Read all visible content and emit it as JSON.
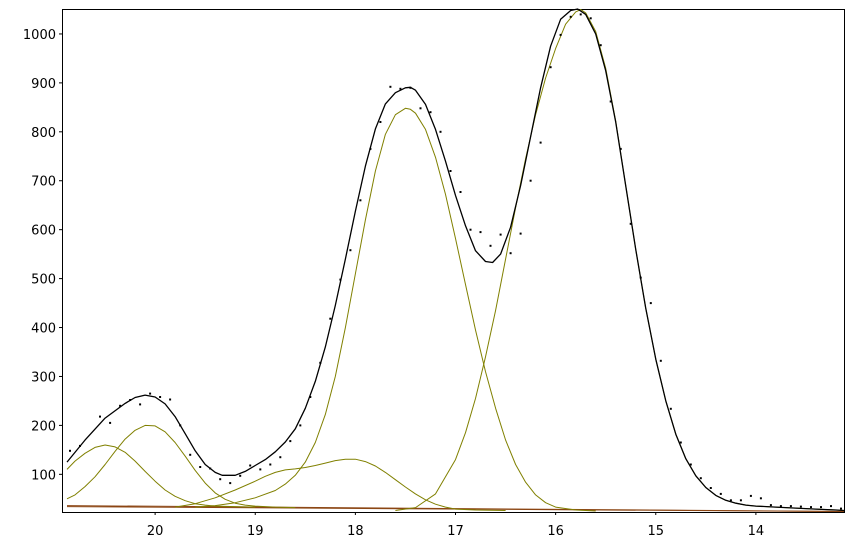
{
  "chart_data": {
    "type": "line",
    "title": "",
    "xlabel": "",
    "ylabel": "",
    "x_reversed": true,
    "xlim": [
      20.93,
      13.12
    ],
    "ylim": [
      23,
      1051
    ],
    "grid": false,
    "legend": "none",
    "x_ticks": [
      20,
      19,
      18,
      17,
      16,
      15,
      14
    ],
    "y_ticks": [
      100,
      200,
      300,
      400,
      500,
      600,
      700,
      800,
      900,
      1000
    ],
    "colors": {
      "fit": "#000000",
      "component": "#808000",
      "baseline": "#8B4513",
      "points": "#000000"
    },
    "series": [
      {
        "role": "observed",
        "points": [
          [
            20.85,
            148
          ],
          [
            20.75,
            158
          ],
          [
            20.55,
            218
          ],
          [
            20.45,
            205
          ],
          [
            20.35,
            240
          ],
          [
            20.25,
            252
          ],
          [
            20.15,
            243
          ],
          [
            20.05,
            265
          ],
          [
            19.95,
            258
          ],
          [
            19.85,
            253
          ],
          [
            19.75,
            200
          ],
          [
            19.65,
            140
          ],
          [
            19.55,
            115
          ],
          [
            19.45,
            112
          ],
          [
            19.35,
            90
          ],
          [
            19.25,
            82
          ],
          [
            19.15,
            97
          ],
          [
            19.05,
            118
          ],
          [
            18.95,
            110
          ],
          [
            18.85,
            120
          ],
          [
            18.75,
            135
          ],
          [
            18.65,
            168
          ],
          [
            18.55,
            200
          ],
          [
            18.45,
            258
          ],
          [
            18.35,
            328
          ],
          [
            18.25,
            418
          ],
          [
            18.15,
            498
          ],
          [
            18.05,
            558
          ],
          [
            17.95,
            660
          ],
          [
            17.85,
            765
          ],
          [
            17.75,
            820
          ],
          [
            17.65,
            892
          ],
          [
            17.55,
            888
          ],
          [
            17.45,
            890
          ],
          [
            17.35,
            848
          ],
          [
            17.25,
            840
          ],
          [
            17.15,
            800
          ],
          [
            17.05,
            720
          ],
          [
            16.95,
            677
          ],
          [
            16.85,
            600
          ],
          [
            16.75,
            595
          ],
          [
            16.65,
            567
          ],
          [
            16.55,
            590
          ],
          [
            16.45,
            552
          ],
          [
            16.35,
            592
          ],
          [
            16.25,
            700
          ],
          [
            16.15,
            778
          ],
          [
            16.05,
            932
          ],
          [
            15.95,
            998
          ],
          [
            15.85,
            1035
          ],
          [
            15.75,
            1040
          ],
          [
            15.65,
            1032
          ],
          [
            15.55,
            977
          ],
          [
            15.45,
            862
          ],
          [
            15.35,
            765
          ],
          [
            15.25,
            612
          ],
          [
            15.15,
            502
          ],
          [
            15.05,
            450
          ],
          [
            14.95,
            332
          ],
          [
            14.85,
            234
          ],
          [
            14.75,
            165
          ],
          [
            14.65,
            120
          ],
          [
            14.55,
            92
          ],
          [
            14.45,
            72
          ],
          [
            14.35,
            60
          ],
          [
            14.25,
            47
          ],
          [
            14.15,
            47
          ],
          [
            14.05,
            56
          ],
          [
            13.95,
            51
          ],
          [
            13.85,
            37
          ],
          [
            13.75,
            35
          ],
          [
            13.65,
            35
          ],
          [
            13.55,
            34
          ],
          [
            13.45,
            33
          ],
          [
            13.35,
            33
          ],
          [
            13.25,
            35
          ],
          [
            13.15,
            30
          ]
        ]
      },
      {
        "role": "fit",
        "points": [
          [
            20.88,
            125
          ],
          [
            20.7,
            170
          ],
          [
            20.5,
            215
          ],
          [
            20.3,
            245
          ],
          [
            20.2,
            257
          ],
          [
            20.1,
            262
          ],
          [
            20.0,
            258
          ],
          [
            19.9,
            244
          ],
          [
            19.8,
            218
          ],
          [
            19.7,
            183
          ],
          [
            19.6,
            148
          ],
          [
            19.5,
            120
          ],
          [
            19.4,
            104
          ],
          [
            19.33,
            98
          ],
          [
            19.2,
            98
          ],
          [
            19.1,
            106
          ],
          [
            19.0,
            118
          ],
          [
            18.9,
            130
          ],
          [
            18.8,
            146
          ],
          [
            18.7,
            166
          ],
          [
            18.6,
            193
          ],
          [
            18.5,
            235
          ],
          [
            18.4,
            290
          ],
          [
            18.3,
            360
          ],
          [
            18.2,
            445
          ],
          [
            18.1,
            540
          ],
          [
            18.0,
            638
          ],
          [
            17.9,
            730
          ],
          [
            17.8,
            806
          ],
          [
            17.7,
            857
          ],
          [
            17.6,
            880
          ],
          [
            17.5,
            890
          ],
          [
            17.45,
            891
          ],
          [
            17.4,
            885
          ],
          [
            17.3,
            856
          ],
          [
            17.2,
            805
          ],
          [
            17.1,
            740
          ],
          [
            17.0,
            670
          ],
          [
            16.9,
            608
          ],
          [
            16.8,
            557
          ],
          [
            16.7,
            535
          ],
          [
            16.63,
            533
          ],
          [
            16.55,
            550
          ],
          [
            16.45,
            605
          ],
          [
            16.35,
            690
          ],
          [
            16.25,
            790
          ],
          [
            16.15,
            890
          ],
          [
            16.05,
            975
          ],
          [
            15.95,
            1030
          ],
          [
            15.85,
            1048
          ],
          [
            15.78,
            1051
          ],
          [
            15.7,
            1040
          ],
          [
            15.6,
            1000
          ],
          [
            15.5,
            925
          ],
          [
            15.4,
            820
          ],
          [
            15.3,
            690
          ],
          [
            15.2,
            560
          ],
          [
            15.1,
            440
          ],
          [
            15.0,
            335
          ],
          [
            14.9,
            250
          ],
          [
            14.8,
            182
          ],
          [
            14.7,
            132
          ],
          [
            14.6,
            97
          ],
          [
            14.5,
            73
          ],
          [
            14.4,
            57
          ],
          [
            14.3,
            47
          ],
          [
            14.2,
            41
          ],
          [
            14.1,
            37
          ],
          [
            14.0,
            35
          ],
          [
            13.8,
            33
          ],
          [
            13.6,
            31
          ],
          [
            13.4,
            29
          ],
          [
            13.2,
            27
          ],
          [
            13.12,
            26
          ]
        ]
      },
      {
        "role": "component",
        "points": [
          [
            20.88,
            110
          ],
          [
            20.8,
            127
          ],
          [
            20.7,
            143
          ],
          [
            20.6,
            155
          ],
          [
            20.5,
            160
          ],
          [
            20.4,
            156
          ],
          [
            20.3,
            145
          ],
          [
            20.2,
            127
          ],
          [
            20.1,
            106
          ],
          [
            20.0,
            86
          ],
          [
            19.9,
            68
          ],
          [
            19.8,
            55
          ],
          [
            19.7,
            46
          ],
          [
            19.6,
            40
          ],
          [
            19.5,
            37
          ],
          [
            19.4,
            35
          ],
          [
            19.2,
            34
          ],
          [
            19.0,
            33
          ]
        ]
      },
      {
        "role": "component",
        "points": [
          [
            20.88,
            50
          ],
          [
            20.8,
            58
          ],
          [
            20.7,
            75
          ],
          [
            20.6,
            95
          ],
          [
            20.5,
            120
          ],
          [
            20.4,
            147
          ],
          [
            20.3,
            172
          ],
          [
            20.2,
            190
          ],
          [
            20.1,
            200
          ],
          [
            20.0,
            199
          ],
          [
            19.9,
            187
          ],
          [
            19.8,
            165
          ],
          [
            19.7,
            137
          ],
          [
            19.6,
            108
          ],
          [
            19.5,
            82
          ],
          [
            19.4,
            62
          ],
          [
            19.3,
            49
          ],
          [
            19.2,
            41
          ],
          [
            19.1,
            37
          ],
          [
            19.0,
            35
          ],
          [
            18.8,
            33
          ],
          [
            18.6,
            32
          ]
        ]
      },
      {
        "role": "component",
        "points": [
          [
            19.8,
            33
          ],
          [
            19.6,
            40
          ],
          [
            19.4,
            52
          ],
          [
            19.2,
            68
          ],
          [
            19.0,
            86
          ],
          [
            18.9,
            96
          ],
          [
            18.8,
            104
          ],
          [
            18.7,
            109
          ],
          [
            18.6,
            111
          ],
          [
            18.5,
            114
          ],
          [
            18.4,
            118
          ],
          [
            18.3,
            123
          ],
          [
            18.2,
            128
          ],
          [
            18.1,
            131
          ],
          [
            18.0,
            131
          ],
          [
            17.9,
            126
          ],
          [
            17.8,
            117
          ],
          [
            17.7,
            104
          ],
          [
            17.6,
            89
          ],
          [
            17.5,
            74
          ],
          [
            17.4,
            60
          ],
          [
            17.3,
            48
          ],
          [
            17.2,
            39
          ],
          [
            17.1,
            33
          ],
          [
            17.0,
            29
          ],
          [
            16.8,
            27
          ],
          [
            16.5,
            26
          ]
        ]
      },
      {
        "role": "component",
        "points": [
          [
            19.6,
            33
          ],
          [
            19.4,
            36
          ],
          [
            19.2,
            42
          ],
          [
            19.0,
            52
          ],
          [
            18.8,
            67
          ],
          [
            18.7,
            80
          ],
          [
            18.6,
            98
          ],
          [
            18.5,
            125
          ],
          [
            18.4,
            165
          ],
          [
            18.3,
            222
          ],
          [
            18.2,
            300
          ],
          [
            18.1,
            400
          ],
          [
            18.0,
            510
          ],
          [
            17.9,
            620
          ],
          [
            17.8,
            720
          ],
          [
            17.7,
            795
          ],
          [
            17.6,
            835
          ],
          [
            17.5,
            848
          ],
          [
            17.45,
            846
          ],
          [
            17.4,
            838
          ],
          [
            17.3,
            805
          ],
          [
            17.2,
            748
          ],
          [
            17.1,
            672
          ],
          [
            17.0,
            582
          ],
          [
            16.9,
            488
          ],
          [
            16.8,
            395
          ],
          [
            16.7,
            310
          ],
          [
            16.6,
            235
          ],
          [
            16.5,
            170
          ],
          [
            16.4,
            120
          ],
          [
            16.3,
            84
          ],
          [
            16.2,
            58
          ],
          [
            16.1,
            42
          ],
          [
            16.0,
            33
          ],
          [
            15.8,
            27
          ],
          [
            15.6,
            25
          ]
        ]
      },
      {
        "role": "component",
        "points": [
          [
            17.6,
            26
          ],
          [
            17.4,
            32
          ],
          [
            17.2,
            60
          ],
          [
            17.0,
            130
          ],
          [
            16.9,
            185
          ],
          [
            16.8,
            255
          ],
          [
            16.7,
            340
          ],
          [
            16.6,
            435
          ],
          [
            16.5,
            540
          ],
          [
            16.4,
            645
          ],
          [
            16.3,
            745
          ],
          [
            16.2,
            835
          ],
          [
            16.1,
            910
          ],
          [
            16.0,
            970
          ],
          [
            15.9,
            1020
          ],
          [
            15.8,
            1045
          ],
          [
            15.75,
            1050
          ],
          [
            15.7,
            1043
          ],
          [
            15.6,
            1005
          ],
          [
            15.5,
            930
          ],
          [
            15.4,
            822
          ],
          [
            15.3,
            690
          ],
          [
            15.2,
            560
          ],
          [
            15.1,
            440
          ],
          [
            15.0,
            335
          ],
          [
            14.9,
            250
          ],
          [
            14.8,
            182
          ],
          [
            14.7,
            132
          ],
          [
            14.6,
            97
          ],
          [
            14.5,
            73
          ],
          [
            14.4,
            57
          ],
          [
            14.3,
            47
          ],
          [
            14.2,
            41
          ],
          [
            14.1,
            37
          ],
          [
            14.0,
            35
          ],
          [
            13.8,
            33
          ],
          [
            13.6,
            31
          ],
          [
            13.4,
            29
          ],
          [
            13.2,
            27
          ],
          [
            13.12,
            26
          ]
        ]
      },
      {
        "role": "baseline",
        "points": [
          [
            20.88,
            36
          ],
          [
            13.12,
            24
          ]
        ]
      },
      {
        "role": "baseline",
        "points": [
          [
            20.88,
            34
          ],
          [
            13.12,
            24
          ]
        ]
      }
    ]
  }
}
